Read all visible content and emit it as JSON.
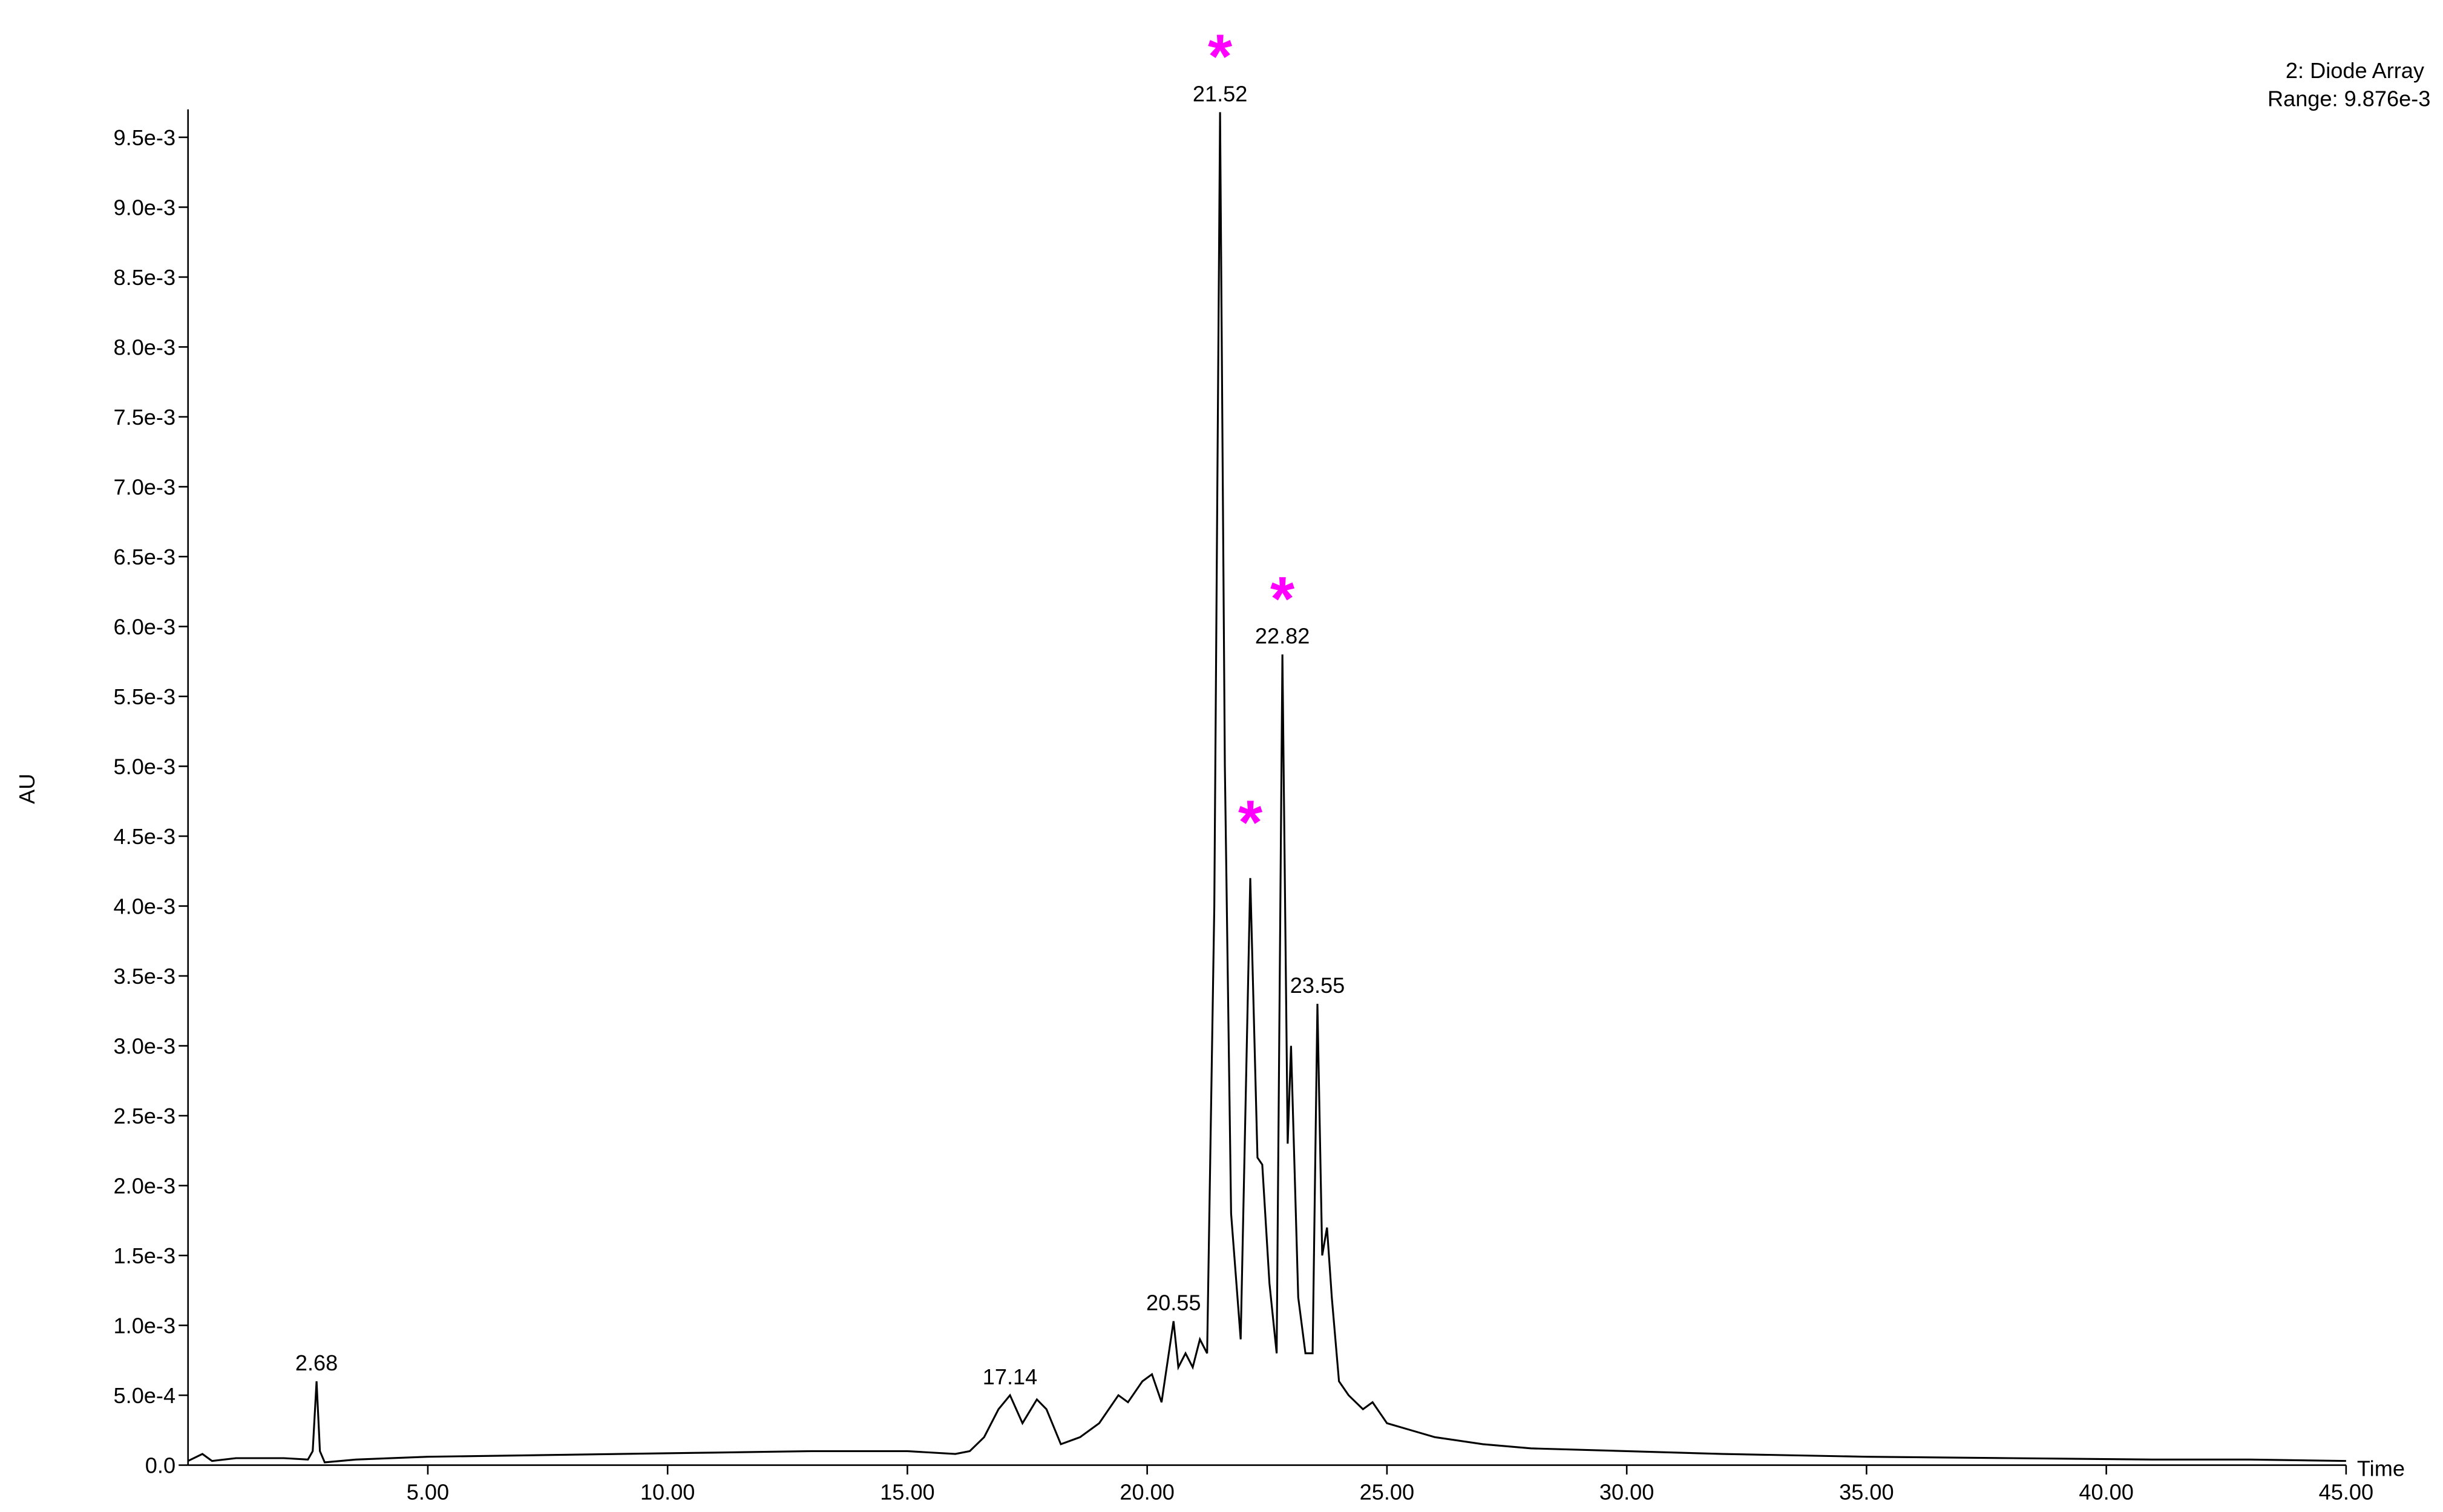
{
  "chart_data": {
    "type": "line",
    "x_label": "Time",
    "y_label": "AU",
    "range_label": "Range: 9.876e-3",
    "xlim": [
      0,
      45
    ],
    "ylim": [
      0,
      0.0097
    ],
    "xticks": [
      {
        "value": 5,
        "label": "5.00"
      },
      {
        "value": 10,
        "label": "10.00"
      },
      {
        "value": 15,
        "label": "15.00"
      },
      {
        "value": 20,
        "label": "20.00"
      },
      {
        "value": 25,
        "label": "25.00"
      },
      {
        "value": 30,
        "label": "30.00"
      },
      {
        "value": 35,
        "label": "35.00"
      },
      {
        "value": 40,
        "label": "40.00"
      },
      {
        "value": 45,
        "label": "45.00"
      }
    ],
    "yticks": [
      {
        "value": 0,
        "label": "0.0"
      },
      {
        "value": 0.0005,
        "label": "5.0e-4"
      },
      {
        "value": 0.001,
        "label": "1.0e-3"
      },
      {
        "value": 0.0015,
        "label": "1.5e-3"
      },
      {
        "value": 0.002,
        "label": "2.0e-3"
      },
      {
        "value": 0.0025,
        "label": "2.5e-3"
      },
      {
        "value": 0.003,
        "label": "3.0e-3"
      },
      {
        "value": 0.0035,
        "label": "3.5e-3"
      },
      {
        "value": 0.004,
        "label": "4.0e-3"
      },
      {
        "value": 0.0045,
        "label": "4.5e-3"
      },
      {
        "value": 0.005,
        "label": "5.0e-3"
      },
      {
        "value": 0.0055,
        "label": "5.5e-3"
      },
      {
        "value": 0.006,
        "label": "6.0e-3"
      },
      {
        "value": 0.0065,
        "label": "6.5e-3"
      },
      {
        "value": 0.007,
        "label": "7.0e-3"
      },
      {
        "value": 0.0075,
        "label": "7.5e-3"
      },
      {
        "value": 0.008,
        "label": "8.0e-3"
      },
      {
        "value": 0.0085,
        "label": "8.5e-3"
      },
      {
        "value": 0.009,
        "label": "9.0e-3"
      },
      {
        "value": 0.0095,
        "label": "9.5e-3"
      }
    ],
    "x": [
      0,
      0.3,
      0.5,
      1,
      2,
      2.5,
      2.6,
      2.68,
      2.75,
      2.85,
      3.5,
      5,
      7,
      9,
      11,
      13,
      14,
      15,
      16,
      16.3,
      16.6,
      16.9,
      17.14,
      17.4,
      17.7,
      17.9,
      18.2,
      18.6,
      19,
      19.4,
      19.6,
      19.9,
      20.1,
      20.3,
      20.55,
      20.65,
      20.8,
      20.95,
      21.1,
      21.25,
      21.4,
      21.52,
      21.62,
      21.75,
      21.95,
      22.15,
      22.3,
      22.4,
      22.55,
      22.7,
      22.82,
      22.93,
      23,
      23.15,
      23.3,
      23.45,
      23.55,
      23.65,
      23.75,
      23.85,
      24,
      24.2,
      24.5,
      24.7,
      25,
      25.5,
      26,
      27,
      28,
      30,
      32,
      35,
      38,
      41,
      43,
      45
    ],
    "series": [
      {
        "name": "2: Diode Array",
        "color": "#000000",
        "values": [
          3e-05,
          8e-05,
          3e-05,
          5e-05,
          5e-05,
          4e-05,
          0.0001,
          0.0006,
          0.0001,
          2e-05,
          4e-05,
          6e-05,
          7e-05,
          8e-05,
          9e-05,
          0.0001,
          0.0001,
          0.0001,
          8e-05,
          0.0001,
          0.0002,
          0.0004,
          0.0005,
          0.0003,
          0.00047,
          0.0004,
          0.00015,
          0.0002,
          0.0003,
          0.0005,
          0.00045,
          0.0006,
          0.00065,
          0.00045,
          0.00103,
          0.0007,
          0.0008,
          0.0007,
          0.0009,
          0.0008,
          0.004,
          0.00968,
          0.005,
          0.0018,
          0.0009,
          0.0042,
          0.0022,
          0.00215,
          0.0013,
          0.0008,
          0.0058,
          0.0023,
          0.003,
          0.0012,
          0.0008,
          0.0008,
          0.0033,
          0.0015,
          0.0017,
          0.0012,
          0.0006,
          0.0005,
          0.0004,
          0.00045,
          0.0003,
          0.00025,
          0.0002,
          0.00015,
          0.00012,
          0.0001,
          8e-05,
          6e-05,
          5e-05,
          4e-05,
          4e-05,
          3e-05
        ]
      }
    ],
    "peaks": [
      {
        "x": 2.68,
        "y": 0.0006
      },
      {
        "x": 17.14,
        "y": 0.0005
      },
      {
        "x": 20.55,
        "y": 0.00103
      },
      {
        "x": 21.52,
        "y": 0.00968
      },
      {
        "x": 22.82,
        "y": 0.0058
      },
      {
        "x": 23.55,
        "y": 0.0033
      }
    ],
    "markers": [
      {
        "text": "*",
        "color": "#ff00ff",
        "x": 21.52,
        "y": 0.00968
      },
      {
        "text": "*",
        "color": "#ff00ff",
        "x": 22.82,
        "y": 0.0058
      },
      {
        "text": "*",
        "color": "#ff00ff",
        "x": 22.15,
        "y": 0.0042
      }
    ]
  }
}
